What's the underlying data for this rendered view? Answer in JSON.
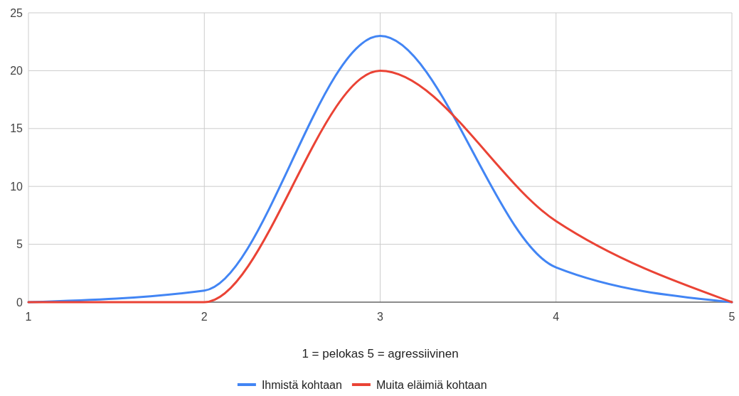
{
  "chart_data": {
    "type": "line",
    "xlabel": "1 = pelokas 5 = agressiivinen",
    "x": [
      1,
      2,
      3,
      4,
      5
    ],
    "series": [
      {
        "name": "Ihmistä kohtaan",
        "color": "#4285f4",
        "values": [
          0,
          1,
          23,
          3,
          0
        ]
      },
      {
        "name": "Muita eläimiä kohtaan",
        "color": "#ea4335",
        "values": [
          0,
          0,
          20,
          7,
          0
        ]
      }
    ],
    "xlim": [
      1,
      5
    ],
    "xticks": [
      1,
      2,
      3,
      4,
      5
    ],
    "ylim": [
      0,
      25
    ],
    "yticks": [
      0,
      5,
      10,
      15,
      20,
      25
    ],
    "grid": true,
    "legend": "bottom",
    "marker": "none",
    "line_style": "solid"
  }
}
